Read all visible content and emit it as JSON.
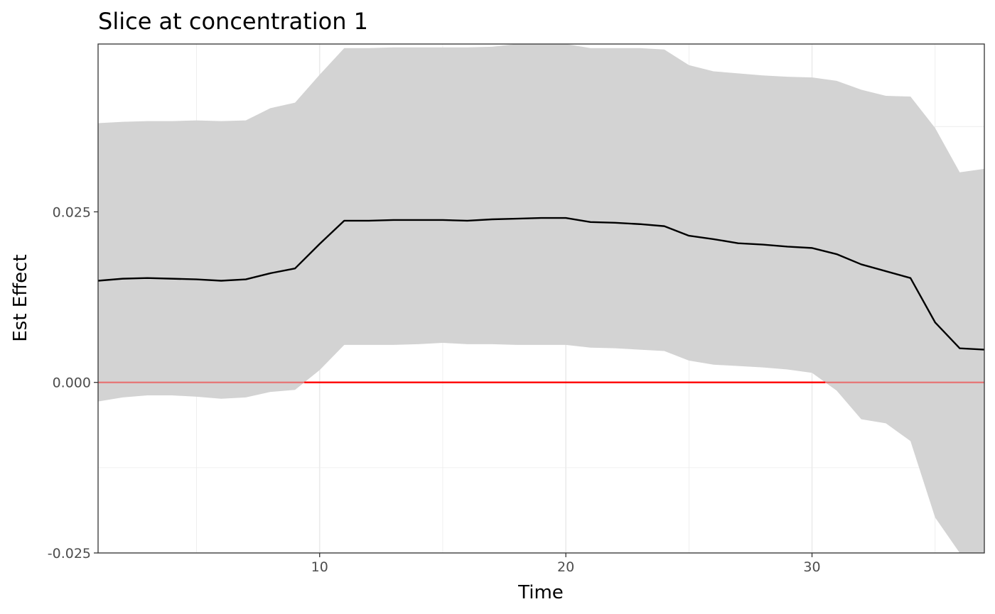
{
  "chart_data": {
    "type": "line",
    "title": "Slice at concentration 1",
    "xlabel": "Time",
    "ylabel": "Est Effect",
    "xlim": [
      1,
      37
    ],
    "ylim": [
      -0.025,
      0.0496
    ],
    "x_ticks": [
      10,
      20,
      30
    ],
    "x_tick_labels": [
      "10",
      "20",
      "30"
    ],
    "y_ticks": [
      -0.025,
      0.0,
      0.025
    ],
    "y_tick_labels": [
      "-0.025",
      "0.000",
      "0.025"
    ],
    "grid": true,
    "legend": "none",
    "colors": {
      "line": "#000000",
      "band": "#d3d3d3",
      "reference": "#ff0000",
      "grid": "#ebebeb",
      "panel_border": "#333333"
    },
    "series": [
      {
        "x": [
          1,
          2,
          3,
          4,
          5,
          6,
          7,
          8,
          9,
          10,
          11,
          12,
          13,
          14,
          15,
          16,
          17,
          18,
          19,
          20,
          21,
          22,
          23,
          24,
          25,
          26,
          27,
          28,
          29,
          30,
          31,
          32,
          33,
          34,
          35,
          36,
          37
        ],
        "values": [
          0.0149,
          0.0152,
          0.0153,
          0.0152,
          0.0151,
          0.0149,
          0.0151,
          0.016,
          0.0167,
          0.0203,
          0.0237,
          0.0237,
          0.0238,
          0.0238,
          0.0238,
          0.0237,
          0.0239,
          0.024,
          0.0241,
          0.0241,
          0.0235,
          0.0234,
          0.0232,
          0.0229,
          0.0215,
          0.021,
          0.0204,
          0.0202,
          0.0199,
          0.0197,
          0.0188,
          0.0173,
          0.0163,
          0.0153,
          0.0088,
          0.005,
          0.0048
        ],
        "lower": [
          -0.0028,
          -0.0022,
          -0.0019,
          -0.0019,
          -0.0021,
          -0.0024,
          -0.0022,
          -0.0014,
          -0.0011,
          0.0018,
          0.0055,
          0.0055,
          0.0055,
          0.0056,
          0.0058,
          0.0056,
          0.0056,
          0.0055,
          0.0055,
          0.0055,
          0.0051,
          0.005,
          0.0048,
          0.0046,
          0.0032,
          0.0026,
          0.0024,
          0.0022,
          0.0019,
          0.0014,
          -0.0012,
          -0.0054,
          -0.006,
          -0.0086,
          -0.0198,
          -0.025,
          -0.0265
        ],
        "upper": [
          0.038,
          0.0382,
          0.0383,
          0.0383,
          0.0384,
          0.0383,
          0.0384,
          0.0402,
          0.041,
          0.0451,
          0.049,
          0.049,
          0.0491,
          0.0491,
          0.0491,
          0.0491,
          0.0492,
          0.0496,
          0.0497,
          0.0496,
          0.049,
          0.049,
          0.049,
          0.0488,
          0.0465,
          0.0456,
          0.0453,
          0.045,
          0.0448,
          0.0447,
          0.0442,
          0.0429,
          0.042,
          0.0419,
          0.0373,
          0.0308,
          0.0313
        ]
      }
    ],
    "reference_line": {
      "y": 0
    }
  }
}
